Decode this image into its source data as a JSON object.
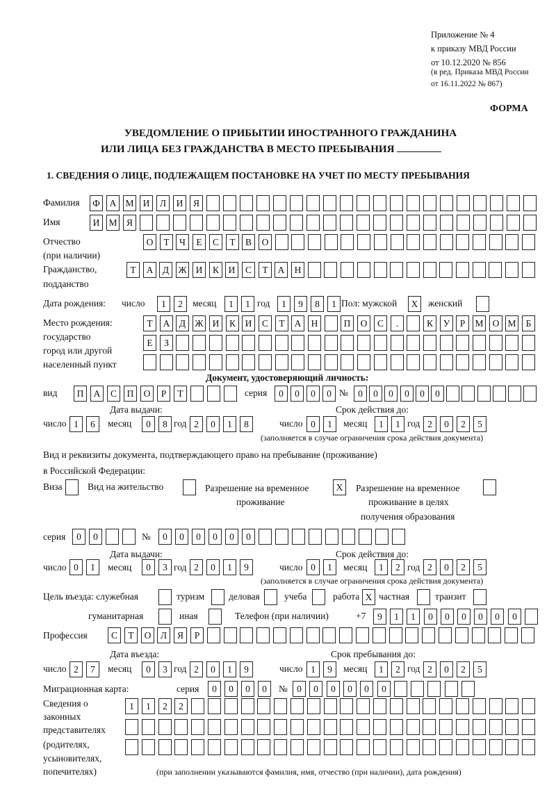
{
  "header": {
    "appendix": [
      "Приложение № 4",
      "к приказу МВД России",
      "от 10.12.2020 № 856"
    ],
    "revision": [
      "(в ред. Приказа МВД России",
      "от 16.11.2022 № 867)"
    ],
    "form_label": "ФОРМА",
    "title_line1": "УВЕДОМЛЕНИЕ О ПРИБЫТИИ ИНОСТРАННОГО ГРАЖДАНИНА",
    "title_line2": "ИЛИ ЛИЦА БЕЗ ГРАЖДАНСТВА В МЕСТО ПРЕБЫВАНИЯ",
    "section1": "1. СВЕДЕНИЯ О ЛИЦЕ, ПОДЛЕЖАЩЕМ ПОСТАНОВКЕ НА УЧЕТ ПО МЕСТУ ПРЕБЫВАНИЯ"
  },
  "labels": {
    "surname": "Фамилия",
    "name": "Имя",
    "patronymic": "Отчество",
    "patronymic2": "(при наличии)",
    "citizenship": "Гражданство,",
    "citizenship2": "подданство",
    "birth_date": "Дата рождения:",
    "day": "число",
    "month": "месяц",
    "year": "год",
    "sex": "Пол: мужской",
    "female": "женский",
    "birth_place": "Место рождения:",
    "bp2": "государство",
    "bp3": "город или другой",
    "bp4": "населенный пункт",
    "id_doc": "Документ, удостоверяющий личность:",
    "kind": "вид",
    "series": "серия",
    "number": "№",
    "issue_date": "Дата выдачи:",
    "valid_until": "Срок действия до:",
    "valid_note": "(заполняется в случае ограничения срока действия документа)",
    "right_doc1": "Вид и реквизиты документа, подтверждающего право на пребывание (проживание)",
    "right_doc2": "в Российской Федерации:",
    "visa": "Виза",
    "residence": "Вид на жительство",
    "temp_res1": "Разрешение на временное",
    "temp_res2": "проживание",
    "temp_edu1": "Разрешение на временное",
    "temp_edu2": "проживание в целях",
    "temp_edu3": "получения образования",
    "purpose": "Цель въезда: служебная",
    "tourism": "туризм",
    "business": "деловая",
    "study": "учеба",
    "work": "работа",
    "private": "частная",
    "transit": "транзит",
    "humanitarian": "гуманитарная",
    "other": "иная",
    "phone": "Телефон (при наличии)",
    "phone_prefix": "+7",
    "profession": "Профессия",
    "entry_date": "Дата въезда:",
    "stay_until": "Срок пребывания до:",
    "migration_card": "Миграционная карта:",
    "reps": [
      "Сведения о",
      "законных",
      "представителях",
      "(родителях,",
      "усыновителях,",
      "попечителях)"
    ],
    "reps_note": "(при заполнении указываются фамилия, имя, отчество (при наличии), дата рождения)"
  },
  "fields": {
    "surname": [
      "Ф",
      "А",
      "М",
      "И",
      "Л",
      "И",
      "Я"
    ],
    "name": [
      "И",
      "М",
      "Я"
    ],
    "patronymic": [
      "О",
      "Т",
      "Ч",
      "Е",
      "С",
      "Т",
      "В",
      "О"
    ],
    "citizenship": [
      "Т",
      "А",
      "Д",
      "Ж",
      "И",
      "К",
      "И",
      "С",
      "Т",
      "А",
      "Н"
    ],
    "birth_day": [
      "1",
      "2"
    ],
    "birth_month": [
      "1",
      "1"
    ],
    "birth_year": [
      "1",
      "9",
      "8",
      "1"
    ],
    "sex_male": [
      "X"
    ],
    "sex_female": [
      ""
    ],
    "birth_place_1": [
      "Т",
      "А",
      "Д",
      "Ж",
      "И",
      "К",
      "И",
      "С",
      "Т",
      "А",
      "Н",
      "",
      "П",
      "О",
      "С",
      ".",
      "",
      "К",
      "У",
      "Р",
      "М",
      "О",
      "М",
      "Б"
    ],
    "birth_place_2": [
      "Е",
      "З"
    ],
    "birth_place_3": [],
    "doc_kind": [
      "П",
      "А",
      "С",
      "П",
      "О",
      "Р",
      "Т"
    ],
    "doc_series": [
      "0",
      "0",
      "0",
      "0"
    ],
    "doc_number": [
      "0",
      "0",
      "0",
      "0",
      "0",
      "0"
    ],
    "doc_issue_day": [
      "1",
      "6"
    ],
    "doc_issue_month": [
      "0",
      "8"
    ],
    "doc_issue_year": [
      "2",
      "0",
      "1",
      "8"
    ],
    "doc_valid_day": [
      "0",
      "1"
    ],
    "doc_valid_month": [
      "1",
      "1"
    ],
    "doc_valid_year": [
      "2",
      "0",
      "2",
      "5"
    ],
    "visa": [
      ""
    ],
    "residence": [
      ""
    ],
    "temp_res": [
      "X"
    ],
    "temp_edu": [
      ""
    ],
    "right_series": [
      "0",
      "0"
    ],
    "right_number": [
      "0",
      "0",
      "0",
      "0",
      "0",
      "0"
    ],
    "right_issue_day": [
      "0",
      "1"
    ],
    "right_issue_month": [
      "0",
      "3"
    ],
    "right_issue_year": [
      "2",
      "0",
      "1",
      "9"
    ],
    "right_valid_day": [
      "0",
      "1"
    ],
    "right_valid_month": [
      "1",
      "2"
    ],
    "right_valid_year": [
      "2",
      "0",
      "2",
      "5"
    ],
    "purpose_official": [
      ""
    ],
    "purpose_tourism": [
      ""
    ],
    "purpose_business": [
      ""
    ],
    "purpose_study": [
      ""
    ],
    "purpose_work": [
      "X"
    ],
    "purpose_private": [
      ""
    ],
    "purpose_transit": [
      ""
    ],
    "purpose_humanitarian": [
      ""
    ],
    "purpose_other": [
      ""
    ],
    "phone": [
      "9",
      "1",
      "1",
      "0",
      "0",
      "0",
      "0",
      "0",
      "0"
    ],
    "profession": [
      "С",
      "Т",
      "О",
      "Л",
      "Я",
      "Р"
    ],
    "entry_day": [
      "2",
      "7"
    ],
    "entry_month": [
      "0",
      "3"
    ],
    "entry_year": [
      "2",
      "0",
      "1",
      "9"
    ],
    "stay_day": [
      "1",
      "9"
    ],
    "stay_month": [
      "1",
      "2"
    ],
    "stay_year": [
      "2",
      "0",
      "2",
      "5"
    ],
    "mig_series": [
      "0",
      "0",
      "0",
      "0"
    ],
    "mig_number": [
      "0",
      "0",
      "0",
      "0",
      "0",
      "0"
    ],
    "reps_1": [
      "1",
      "1",
      "2",
      "2"
    ],
    "reps_2": [],
    "reps_3": []
  }
}
